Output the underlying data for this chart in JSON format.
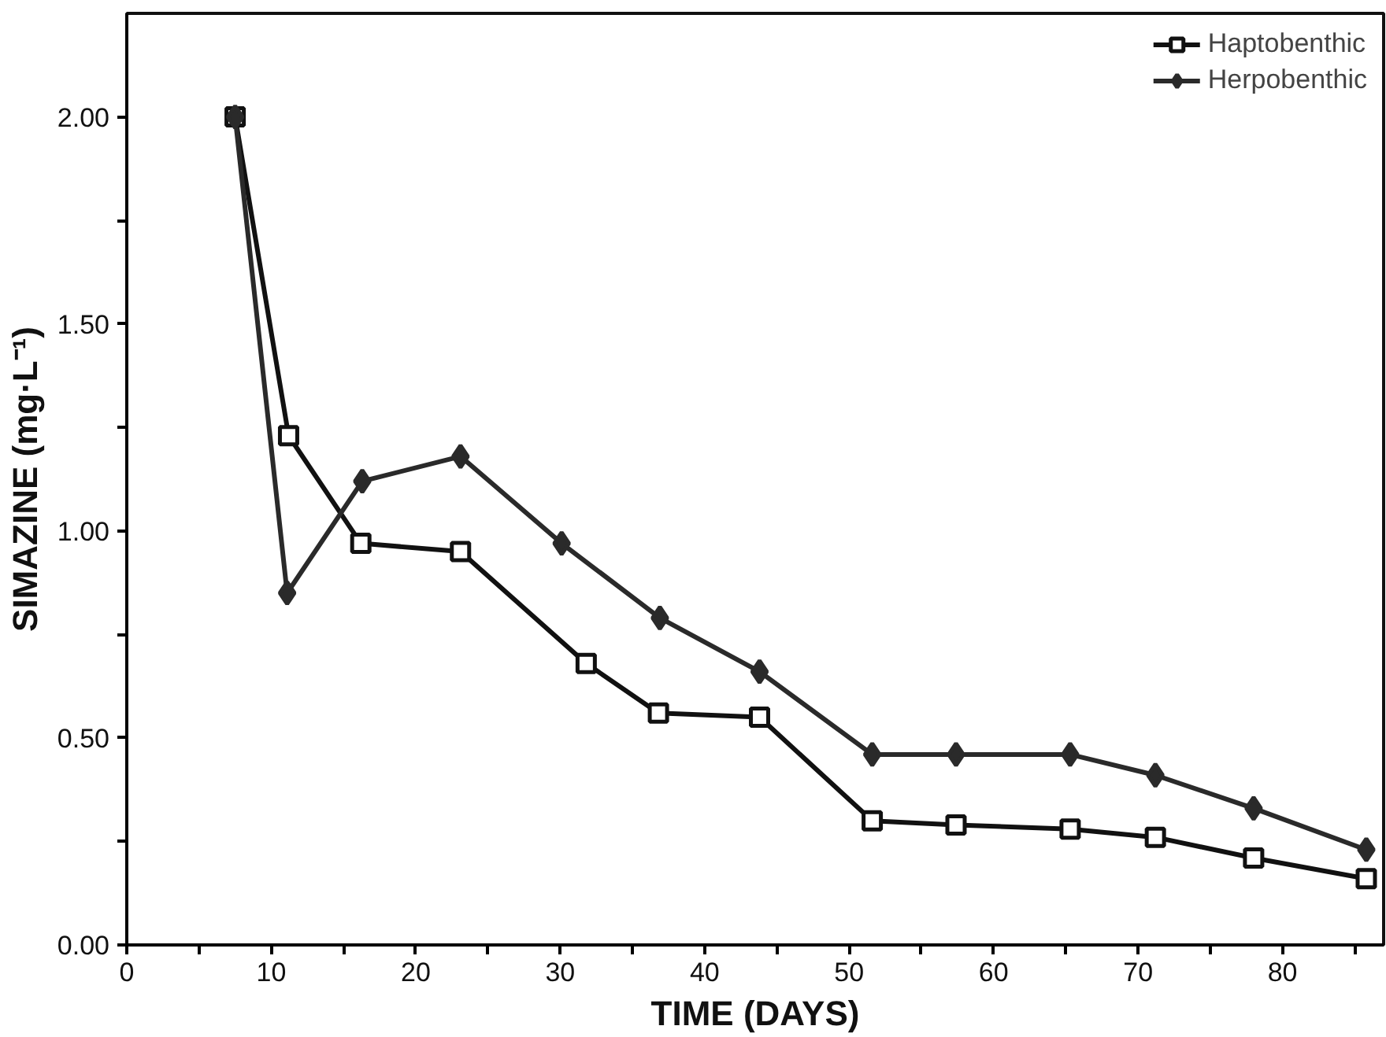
{
  "chart_data": {
    "type": "line",
    "xlabel": "TIME (DAYS)",
    "ylabel": "SIMAZINE (mg·L⁻¹)",
    "xlim": [
      0,
      87
    ],
    "ylim": [
      0,
      2.25
    ],
    "xticks": [
      0,
      {
        "value": 5,
        "label": null
      },
      10,
      {
        "value": 15,
        "label": null
      },
      20,
      {
        "value": 25,
        "label": null
      },
      30,
      {
        "value": 35,
        "label": null
      },
      40,
      {
        "value": 45,
        "label": null
      },
      50,
      {
        "value": 55,
        "label": null
      },
      60,
      {
        "value": 65,
        "label": null
      },
      70,
      {
        "value": 75,
        "label": null
      },
      80,
      {
        "value": 85,
        "label": null
      }
    ],
    "yticks": [
      {
        "value": 0,
        "label": "0.00"
      },
      {
        "value": 0.25,
        "label": null
      },
      {
        "value": 0.5,
        "label": "0.50"
      },
      {
        "value": 0.75,
        "label": null
      },
      {
        "value": 1,
        "label": "1.00"
      },
      {
        "value": 1.25,
        "label": null
      },
      {
        "value": 1.5,
        "label": "1.50"
      },
      {
        "value": 1.75,
        "label": null
      },
      {
        "value": 2,
        "label": "2.00"
      }
    ],
    "grid": false,
    "legend": "top right",
    "line_style": "solid",
    "series": [
      {
        "name": "Haptobenthic",
        "color": "#111111",
        "marker": "square",
        "x": [
          7.5,
          11.2,
          16.2,
          23.1,
          31.8,
          36.8,
          43.8,
          51.6,
          57.4,
          65.3,
          71.2,
          78.0,
          85.8
        ],
        "values": [
          2.0,
          1.23,
          0.97,
          0.95,
          0.68,
          0.56,
          0.55,
          0.3,
          0.29,
          0.28,
          0.26,
          0.21,
          0.16
        ]
      },
      {
        "name": "Herpobenthic",
        "color": "#2a2a2a",
        "marker": "diamond",
        "x": [
          7.5,
          11.1,
          16.3,
          23.1,
          30.1,
          36.9,
          43.8,
          51.6,
          57.4,
          65.3,
          71.2,
          78.0,
          85.8
        ],
        "values": [
          2.0,
          0.85,
          1.12,
          1.18,
          0.97,
          0.79,
          0.66,
          0.46,
          0.46,
          0.46,
          0.41,
          0.33,
          0.23
        ]
      }
    ]
  }
}
